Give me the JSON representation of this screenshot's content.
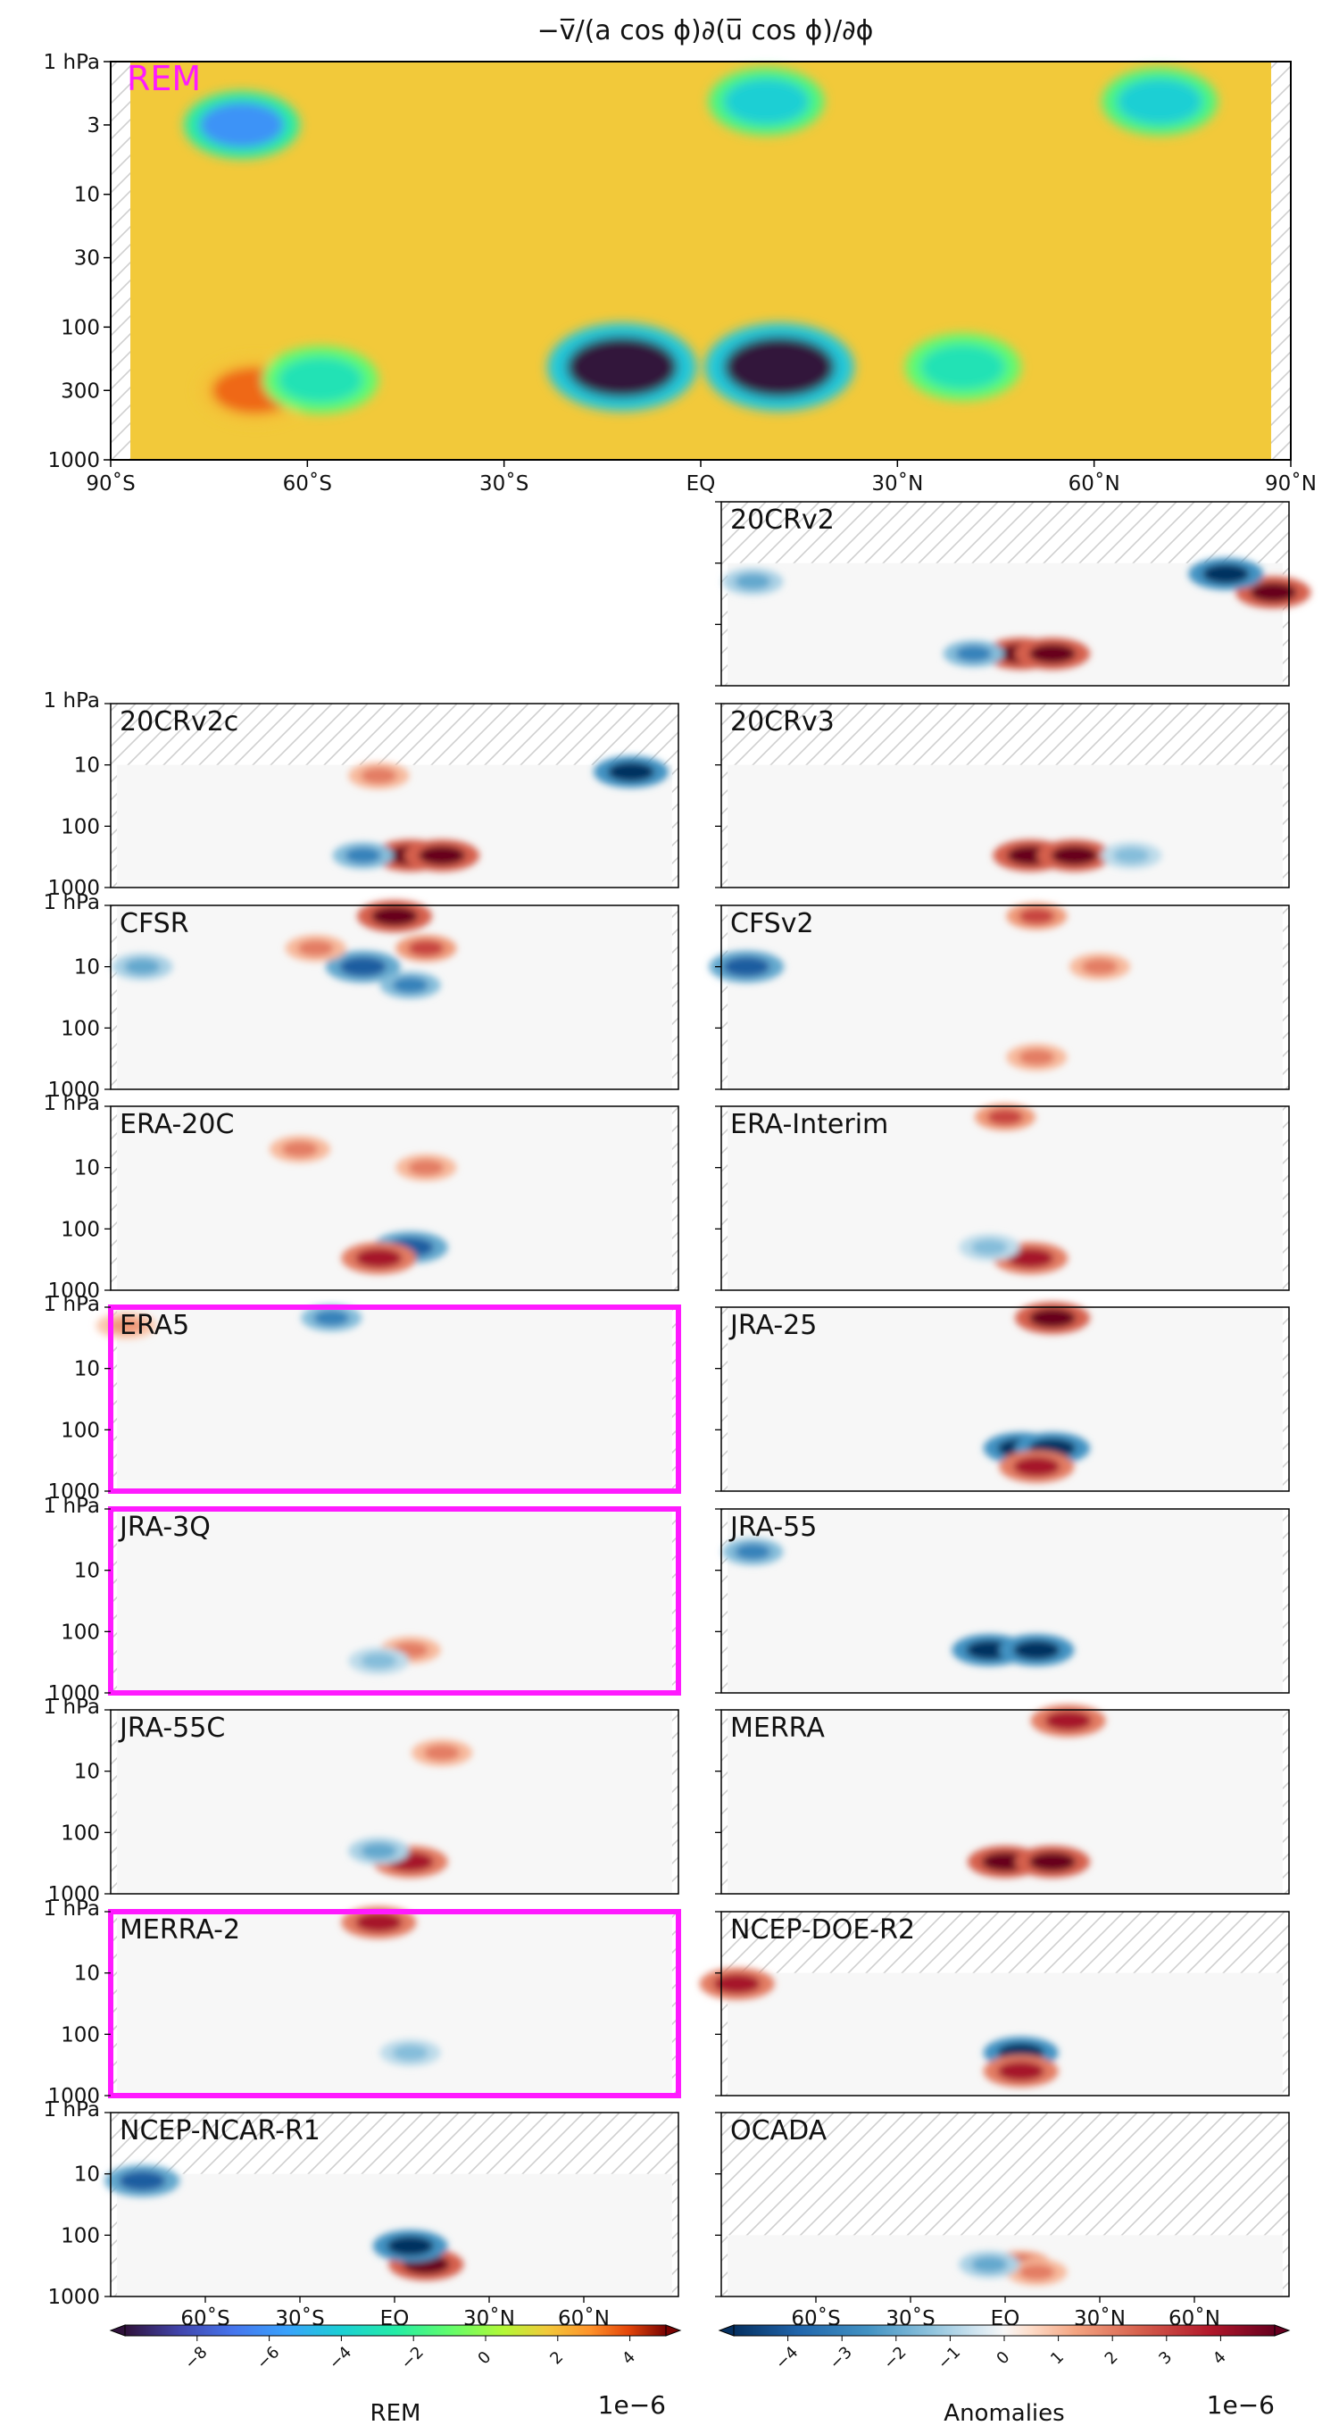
{
  "chart_data": {
    "type": "heatmap",
    "title": "−v̅/(a cos ϕ)∂(u̅ cos ϕ)/∂ϕ",
    "main_panel": {
      "label": "REM",
      "label_color": "#ff1aff",
      "x_tick_labels": [
        "90˚S",
        "60˚S",
        "30˚S",
        "EQ",
        "30˚N",
        "60˚N",
        "90˚N"
      ],
      "y_tick_labels": [
        "1 hPa",
        "3",
        "10",
        "30",
        "100",
        "300",
        "1000"
      ],
      "xlim": [
        -90,
        90
      ],
      "ylim_hpa": [
        1000,
        1
      ],
      "features": [
        {
          "lat": -70,
          "p": 3,
          "value": -6
        },
        {
          "lat": -68,
          "p": 300,
          "value": 3.5
        },
        {
          "lat": -12,
          "p": 200,
          "value": -10
        },
        {
          "lat": 12,
          "p": 200,
          "value": -10
        },
        {
          "lat": 40,
          "p": 200,
          "value": -3
        },
        {
          "lat": -58,
          "p": 250,
          "value": -3
        },
        {
          "lat": 10,
          "p": 2,
          "value": -4
        },
        {
          "lat": 70,
          "p": 2,
          "value": -4
        }
      ]
    },
    "anomaly_panels": [
      {
        "label": "20CRv2",
        "top_hpa": 10,
        "highlight": false,
        "features": [
          {
            "lat": 5,
            "p": 300,
            "value": 5
          },
          {
            "lat": 15,
            "p": 300,
            "value": 5
          },
          {
            "lat": -10,
            "p": 300,
            "value": -3
          },
          {
            "lat": 85,
            "p": 30,
            "value": 5
          },
          {
            "lat": 70,
            "p": 15,
            "value": -5
          },
          {
            "lat": -80,
            "p": 20,
            "value": -2
          }
        ]
      },
      {
        "label": "20CRv2c",
        "top_hpa": 10,
        "highlight": false,
        "features": [
          {
            "lat": 5,
            "p": 300,
            "value": 5
          },
          {
            "lat": 15,
            "p": 300,
            "value": 5
          },
          {
            "lat": -10,
            "p": 300,
            "value": -3
          },
          {
            "lat": 75,
            "p": 12,
            "value": -5
          },
          {
            "lat": -5,
            "p": 15,
            "value": 2
          }
        ]
      },
      {
        "label": "20CRv3",
        "top_hpa": 10,
        "highlight": false,
        "features": [
          {
            "lat": 8,
            "p": 300,
            "value": 5
          },
          {
            "lat": 22,
            "p": 300,
            "value": 5
          },
          {
            "lat": 40,
            "p": 300,
            "value": -1.5
          }
        ]
      },
      {
        "label": "CFSR",
        "top_hpa": 1,
        "highlight": false,
        "features": [
          {
            "lat": 0,
            "p": 1.5,
            "value": 5
          },
          {
            "lat": -10,
            "p": 10,
            "value": -4
          },
          {
            "lat": 5,
            "p": 20,
            "value": -3
          },
          {
            "lat": 10,
            "p": 5,
            "value": 3
          },
          {
            "lat": -25,
            "p": 5,
            "value": 2
          },
          {
            "lat": -80,
            "p": 10,
            "value": -2
          }
        ]
      },
      {
        "label": "CFSv2",
        "top_hpa": 1,
        "highlight": false,
        "features": [
          {
            "lat": -82,
            "p": 10,
            "value": -4
          },
          {
            "lat": 10,
            "p": 1.5,
            "value": 3
          },
          {
            "lat": 30,
            "p": 10,
            "value": 2
          },
          {
            "lat": 10,
            "p": 300,
            "value": 2
          }
        ]
      },
      {
        "label": "ERA-20C",
        "top_hpa": 1,
        "highlight": false,
        "features": [
          {
            "lat": 5,
            "p": 200,
            "value": -4
          },
          {
            "lat": -5,
            "p": 300,
            "value": 4
          },
          {
            "lat": 10,
            "p": 10,
            "value": 2
          },
          {
            "lat": -30,
            "p": 5,
            "value": 2
          }
        ]
      },
      {
        "label": "ERA-Interim",
        "top_hpa": 1,
        "highlight": false,
        "features": [
          {
            "lat": 8,
            "p": 300,
            "value": 4
          },
          {
            "lat": -5,
            "p": 200,
            "value": -1.5
          },
          {
            "lat": 0,
            "p": 1.5,
            "value": 3
          }
        ]
      },
      {
        "label": "ERA5",
        "top_hpa": 1,
        "highlight": true,
        "features": [
          {
            "lat": -20,
            "p": 1.5,
            "value": -3
          },
          {
            "lat": -85,
            "p": 2,
            "value": 1.5
          }
        ]
      },
      {
        "label": "JRA-25",
        "top_hpa": 1,
        "highlight": false,
        "features": [
          {
            "lat": 5,
            "p": 200,
            "value": -5
          },
          {
            "lat": 15,
            "p": 200,
            "value": -5
          },
          {
            "lat": 10,
            "p": 400,
            "value": 4
          },
          {
            "lat": 15,
            "p": 1.5,
            "value": 5
          }
        ]
      },
      {
        "label": "JRA-3Q",
        "top_hpa": 1,
        "highlight": true,
        "features": [
          {
            "lat": 5,
            "p": 200,
            "value": 2
          },
          {
            "lat": -5,
            "p": 300,
            "value": -1.5
          }
        ]
      },
      {
        "label": "JRA-55",
        "top_hpa": 1,
        "highlight": false,
        "features": [
          {
            "lat": -5,
            "p": 200,
            "value": -5
          },
          {
            "lat": 10,
            "p": 200,
            "value": -5
          },
          {
            "lat": -80,
            "p": 5,
            "value": -3
          }
        ]
      },
      {
        "label": "JRA-55C",
        "top_hpa": 1,
        "highlight": false,
        "features": [
          {
            "lat": 5,
            "p": 300,
            "value": 4
          },
          {
            "lat": -5,
            "p": 200,
            "value": -2
          },
          {
            "lat": 15,
            "p": 5,
            "value": 2
          }
        ]
      },
      {
        "label": "MERRA",
        "top_hpa": 1,
        "highlight": false,
        "features": [
          {
            "lat": 0,
            "p": 300,
            "value": 5
          },
          {
            "lat": 15,
            "p": 300,
            "value": 5
          },
          {
            "lat": 20,
            "p": 1.5,
            "value": 4
          }
        ]
      },
      {
        "label": "MERRA-2",
        "top_hpa": 1,
        "highlight": true,
        "features": [
          {
            "lat": -5,
            "p": 1.5,
            "value": 4
          },
          {
            "lat": 5,
            "p": 200,
            "value": -1.5
          }
        ]
      },
      {
        "label": "NCEP-DOE-R2",
        "top_hpa": 10,
        "highlight": false,
        "features": [
          {
            "lat": 5,
            "p": 200,
            "value": -5
          },
          {
            "lat": 5,
            "p": 400,
            "value": 4
          },
          {
            "lat": -85,
            "p": 15,
            "value": 4
          }
        ]
      },
      {
        "label": "NCEP-NCAR-R1",
        "top_hpa": 10,
        "highlight": false,
        "features": [
          {
            "lat": 10,
            "p": 300,
            "value": 5
          },
          {
            "lat": 5,
            "p": 150,
            "value": -5
          },
          {
            "lat": -80,
            "p": 12,
            "value": -4
          }
        ]
      },
      {
        "label": "OCADA",
        "top_hpa": 100,
        "highlight": false,
        "features": [
          {
            "lat": 5,
            "p": 300,
            "value": 3
          },
          {
            "lat": 10,
            "p": 400,
            "value": 2
          },
          {
            "lat": -5,
            "p": 300,
            "value": -2
          }
        ]
      }
    ],
    "small_x_tick_labels": [
      "60˚S",
      "30˚S",
      "EQ",
      "30˚N",
      "60˚N"
    ],
    "small_y_tick_labels": [
      "1 hPa",
      "10",
      "100",
      "1000"
    ],
    "colorbars": [
      {
        "label": "REM",
        "scale_label": "1e−6",
        "ticks": [
          "−8",
          "−6",
          "−4",
          "−2",
          "0",
          "2",
          "4"
        ],
        "vmin": -10,
        "vmax": 5
      },
      {
        "label": "Anomalies",
        "scale_label": "1e−6",
        "ticks": [
          "−4",
          "−3",
          "−2",
          "−1",
          "0",
          "1",
          "2",
          "3",
          "4"
        ],
        "vmin": -5,
        "vmax": 5
      }
    ]
  }
}
